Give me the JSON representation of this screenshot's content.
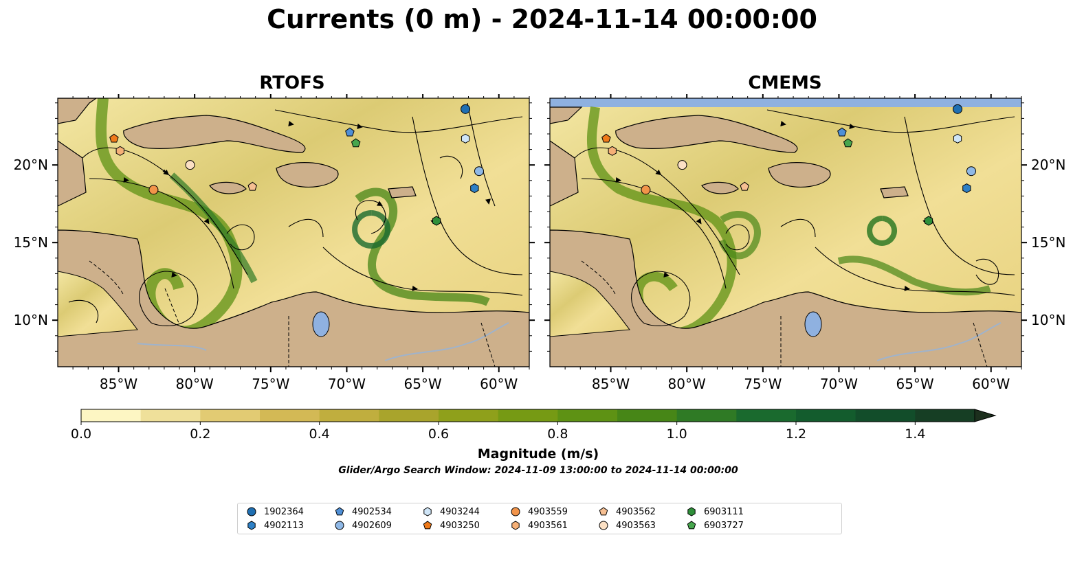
{
  "title": "Currents (0 m) - 2024-11-14 00:00:00",
  "panels": [
    {
      "name": "RTOFS"
    },
    {
      "name": "CMEMS"
    }
  ],
  "axes": {
    "lon_ticks": [
      "85°W",
      "80°W",
      "75°W",
      "70°W",
      "65°W",
      "60°W"
    ],
    "lat_ticks": [
      "20°N",
      "15°N",
      "10°N"
    ]
  },
  "colorbar": {
    "label": "Magnitude (m/s)",
    "ticks": [
      "0.0",
      "0.2",
      "0.4",
      "0.6",
      "0.8",
      "1.0",
      "1.2",
      "1.4"
    ],
    "min": 0.0,
    "max": 1.5,
    "step": 0.1,
    "extend": "max",
    "colors": [
      "#fdf6c3",
      "#efe09a",
      "#e2cb73",
      "#d3b955",
      "#c0ae3e",
      "#a9a42c",
      "#8fa01b",
      "#769a14",
      "#5e9214",
      "#478617",
      "#2f7a25",
      "#1a6a2e",
      "#135c2d",
      "#124d2a",
      "#163e24",
      "#1c2f1d"
    ]
  },
  "search_window": "Glider/Argo Search Window: 2024-11-09 13:00:00 to 2024-11-14 00:00:00",
  "map_colors": {
    "land": "#cdb08b",
    "water": "#f4e7a4",
    "lakes": "#8fb1e0",
    "rivers": "#9fb3cc"
  },
  "floats": [
    {
      "id": "1902364",
      "marker": "circle",
      "color": "#1f6fb2",
      "lon": -62.2,
      "lat": 23.6
    },
    {
      "id": "4902113",
      "marker": "hexagon",
      "color": "#2e80c6",
      "lon": -61.6,
      "lat": 18.5
    },
    {
      "id": "4902534",
      "marker": "pentagon",
      "color": "#4f8fd6",
      "lon": -69.8,
      "lat": 22.1
    },
    {
      "id": "4902609",
      "marker": "circle",
      "color": "#8fb8e6",
      "lon": -61.3,
      "lat": 19.6
    },
    {
      "id": "4903244",
      "marker": "hexagon",
      "color": "#cfe5f7",
      "lon": -62.2,
      "lat": 21.7
    },
    {
      "id": "4903250",
      "marker": "pentagon",
      "color": "#ef7a1a",
      "lon": -85.3,
      "lat": 21.7
    },
    {
      "id": "4903559",
      "marker": "circle",
      "color": "#f2944a",
      "lon": -82.7,
      "lat": 18.4
    },
    {
      "id": "4903561",
      "marker": "hexagon",
      "color": "#f5b077",
      "lon": -84.9,
      "lat": 20.9
    },
    {
      "id": "4903562",
      "marker": "pentagon",
      "color": "#f6bf92",
      "lon": -76.2,
      "lat": 18.6
    },
    {
      "id": "4903563",
      "marker": "circle",
      "color": "#fbe0c4",
      "lon": -80.3,
      "lat": 20.0
    },
    {
      "id": "6903111",
      "marker": "hexagon",
      "color": "#2f8f3a",
      "lon": -64.1,
      "lat": 16.4
    },
    {
      "id": "6903727",
      "marker": "pentagon",
      "color": "#47a64d",
      "lon": -69.4,
      "lat": 21.4
    }
  ]
}
